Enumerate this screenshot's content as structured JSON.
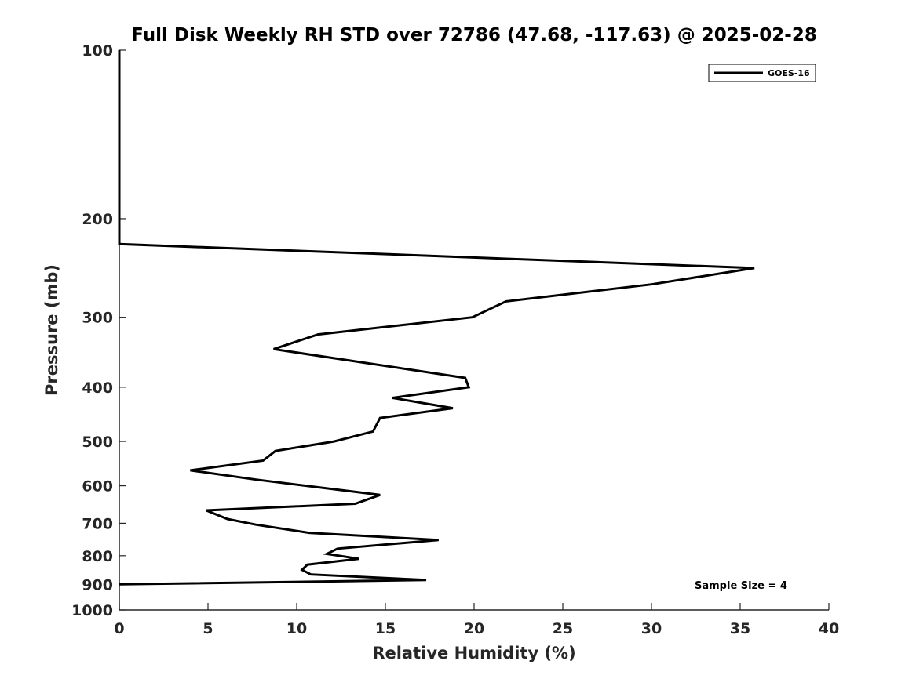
{
  "chart_data": {
    "type": "line",
    "title": "Full Disk Weekly RH STD over 72786 (47.68, -117.63) @ 2025-02-28",
    "xlabel": "Relative Humidity (%)",
    "ylabel": "Pressure (mb)",
    "xlim": [
      0,
      40
    ],
    "ylim": [
      100,
      1000
    ],
    "yscale": "log",
    "reversed_y": true,
    "x_ticks": [
      0,
      5,
      10,
      15,
      20,
      25,
      30,
      35,
      40
    ],
    "y_ticks": [
      100,
      200,
      300,
      400,
      500,
      600,
      700,
      800,
      900,
      1000
    ],
    "legend": {
      "placement": "top-right",
      "entries": [
        "GOES-16"
      ]
    },
    "annotation": "Sample Size = 4",
    "series": [
      {
        "name": "GOES-16",
        "color": "#000000",
        "x": [
          0,
          0,
          0,
          0,
          0,
          35.8,
          30.0,
          21.8,
          19.9,
          11.2,
          8.7,
          19.5,
          19.7,
          15.4,
          18.8,
          14.7,
          14.3,
          12.1,
          8.8,
          8.1,
          4.0,
          7.7,
          12.2,
          14.7,
          13.3,
          4.9,
          6.1,
          7.7,
          10.7,
          18.0,
          12.3,
          11.7,
          13.5,
          10.6,
          10.3,
          10.8,
          17.3,
          0
        ],
        "y": [
          100,
          150,
          200,
          215,
          222,
          245,
          262,
          281,
          300,
          322,
          342,
          385,
          400,
          418,
          436,
          454,
          480,
          500,
          520,
          541,
          563,
          585,
          609,
          623,
          646,
          664,
          688,
          704,
          728,
          750,
          777,
          794,
          810,
          830,
          848,
          864,
          884,
          900
        ]
      }
    ]
  }
}
